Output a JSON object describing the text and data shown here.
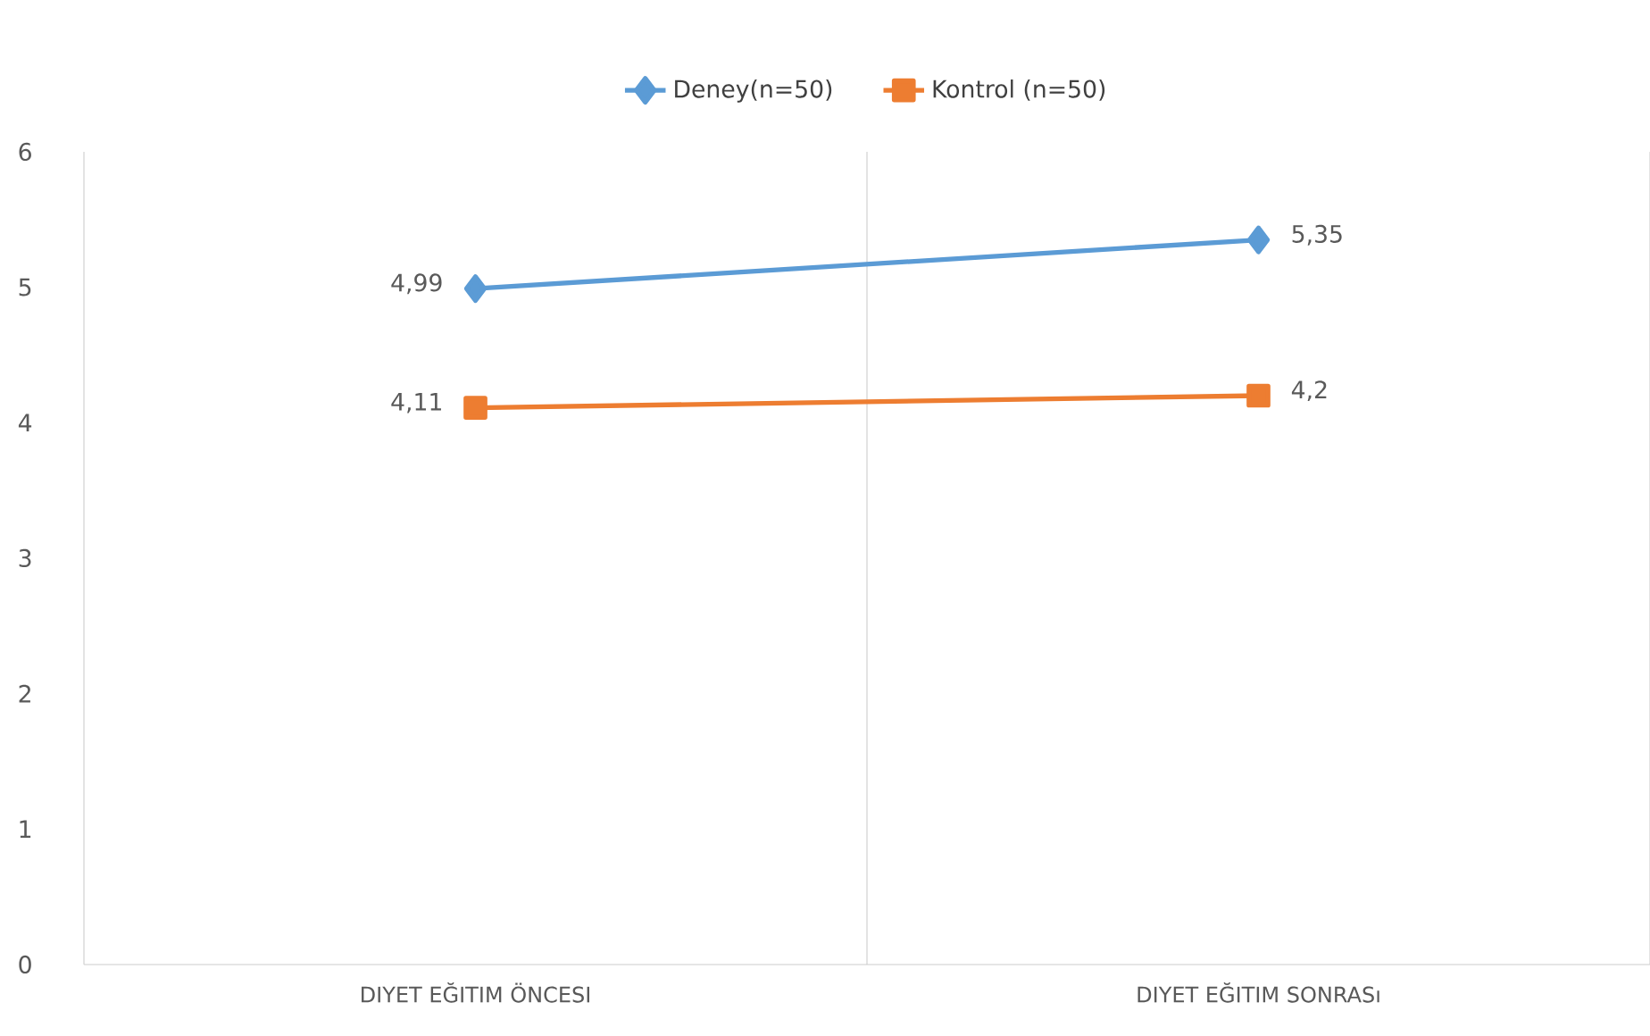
{
  "chart_data": {
    "type": "line",
    "categories": [
      "DIYET EĞITIM ÖNCESI",
      "DIYET EĞITIM SONRASı"
    ],
    "series": [
      {
        "name": "Deney(n=50)",
        "color": "#5b9bd5",
        "marker": "diamond",
        "values": [
          4.99,
          5.35
        ],
        "value_labels": [
          "4,99",
          "5,35"
        ]
      },
      {
        "name": "Kontrol (n=50)",
        "color": "#ed7d31",
        "marker": "square",
        "values": [
          4.11,
          4.2
        ],
        "value_labels": [
          "4,11",
          "4,2"
        ]
      }
    ],
    "ylim": [
      0,
      6
    ],
    "yticks": [
      0,
      1,
      2,
      3,
      4,
      5,
      6
    ],
    "grid": "x",
    "legend": "top"
  }
}
